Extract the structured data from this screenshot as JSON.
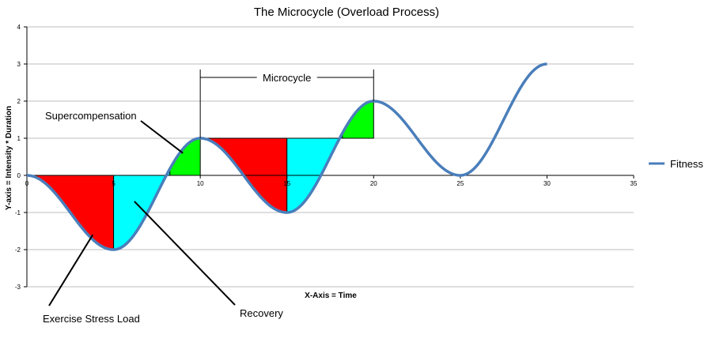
{
  "chart_data": {
    "type": "line",
    "title": "The Microcycle (Overload Process)",
    "xlabel": "X-Axis = Time",
    "ylabel": "Y-axis = Intensity * Duration",
    "xlim": [
      0,
      35
    ],
    "ylim": [
      -3,
      4
    ],
    "x_ticks": [
      0,
      5,
      10,
      15,
      20,
      25,
      30,
      35
    ],
    "y_ticks": [
      -3,
      -2,
      -1,
      0,
      1,
      2,
      3,
      4
    ],
    "grid": "horizontal",
    "legend_position": "right",
    "series": [
      {
        "name": "Fitness",
        "color": "#4a7ebb",
        "points": [
          [
            0,
            0
          ],
          [
            5,
            -2
          ],
          [
            10,
            1
          ],
          [
            15,
            -1
          ],
          [
            20,
            2
          ],
          [
            25,
            0
          ],
          [
            30,
            3
          ]
        ]
      }
    ],
    "regions": [
      {
        "kind": "exercise-stress-load",
        "color": "#ff0000",
        "from": 0,
        "to": 5,
        "baseline": 0
      },
      {
        "kind": "recovery",
        "color": "#00ffff",
        "from": 5,
        "to": 8.25,
        "baseline": 0
      },
      {
        "kind": "supercompensation",
        "color": "#00ff00",
        "from": 8.25,
        "to": 10,
        "baseline": 0
      },
      {
        "kind": "exercise-stress-load",
        "color": "#ff0000",
        "from": 10,
        "to": 15,
        "baseline": 1
      },
      {
        "kind": "recovery",
        "color": "#00ffff",
        "from": 15,
        "to": 18.2,
        "baseline": 1
      },
      {
        "kind": "supercompensation",
        "color": "#00ff00",
        "from": 18.2,
        "to": 20,
        "baseline": 1
      }
    ],
    "span": {
      "label": "Microcycle",
      "from": 10,
      "to": 20
    },
    "annotations": [
      {
        "label": "Supercompensation",
        "target": [
          9,
          0.6
        ]
      },
      {
        "label": "Exercise Stress Load",
        "target": [
          3.8,
          -1.6
        ]
      },
      {
        "label": "Recovery",
        "target": [
          6.2,
          -0.7
        ]
      }
    ]
  }
}
